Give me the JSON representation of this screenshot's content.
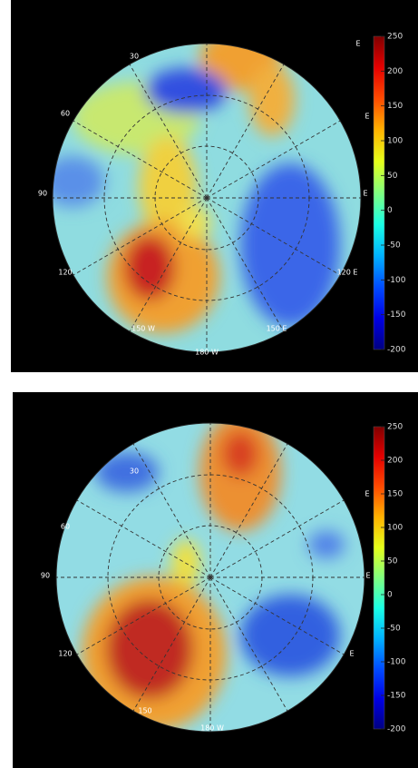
{
  "panels": [
    {
      "colorbar": {
        "lim": [
          -200,
          250
        ],
        "ticks": [
          250,
          200,
          150,
          100,
          50,
          0,
          -50,
          -100,
          -150,
          -200
        ]
      },
      "lon_labels": [
        "30",
        "60",
        "90",
        "120",
        "150 W",
        "180 W",
        "150 E",
        "120 E",
        "E",
        "E",
        "E"
      ]
    },
    {
      "colorbar": {
        "lim": [
          -200,
          250
        ],
        "ticks": [
          250,
          200,
          150,
          100,
          50,
          0,
          -50,
          -100,
          -150,
          -200
        ]
      },
      "lon_labels": [
        "30",
        "60",
        "90",
        "120",
        "150",
        "180 W",
        "E",
        "E",
        "E"
      ]
    }
  ]
}
